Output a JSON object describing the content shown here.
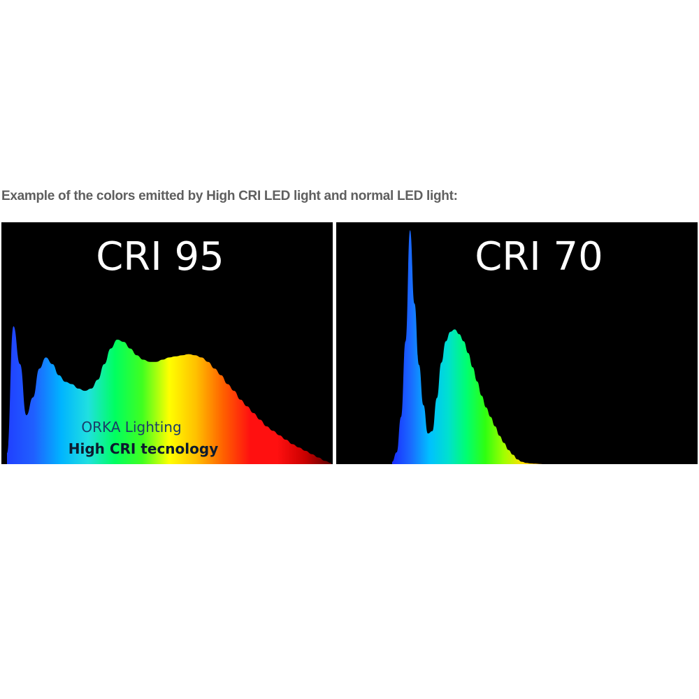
{
  "caption": "Example of the colors emitted by High CRI LED light and normal LED light:",
  "chart_data": [
    {
      "type": "area",
      "title": "CRI 95",
      "annotation": [
        "ORKA Lighting",
        "High CRI tecnology"
      ],
      "x": [
        0,
        0.02,
        0.04,
        0.06,
        0.08,
        0.1,
        0.12,
        0.14,
        0.16,
        0.18,
        0.2,
        0.22,
        0.24,
        0.26,
        0.28,
        0.3,
        0.32,
        0.34,
        0.36,
        0.38,
        0.4,
        0.42,
        0.44,
        0.46,
        0.48,
        0.5,
        0.52,
        0.54,
        0.56,
        0.58,
        0.6,
        0.62,
        0.64,
        0.66,
        0.68,
        0.7,
        0.72,
        0.74,
        0.76,
        0.78,
        0.8,
        0.82,
        0.84,
        0.86,
        0.88,
        0.9,
        0.92,
        0.94,
        0.96,
        0.98,
        1
      ],
      "y": [
        0.05,
        0.62,
        0.45,
        0.22,
        0.3,
        0.43,
        0.48,
        0.45,
        0.4,
        0.37,
        0.36,
        0.34,
        0.33,
        0.34,
        0.38,
        0.45,
        0.52,
        0.56,
        0.55,
        0.52,
        0.49,
        0.47,
        0.46,
        0.46,
        0.47,
        0.48,
        0.485,
        0.49,
        0.495,
        0.49,
        0.48,
        0.46,
        0.43,
        0.4,
        0.36,
        0.33,
        0.29,
        0.26,
        0.23,
        0.2,
        0.17,
        0.15,
        0.13,
        0.11,
        0.09,
        0.075,
        0.06,
        0.045,
        0.03,
        0.015,
        0.005
      ],
      "colors": [
        "#2040ff",
        "#2060ff",
        "#00b4ff",
        "#20e0e0",
        "#00ff60",
        "#40ff20",
        "#ffff00",
        "#ffc000",
        "#ff6000",
        "#ff1010",
        "#ff1010",
        "#cc0000",
        "#600000"
      ]
    },
    {
      "type": "area",
      "title": "CRI 70",
      "x": [
        0,
        0.02,
        0.04,
        0.06,
        0.08,
        0.1,
        0.12,
        0.14,
        0.16,
        0.18,
        0.2,
        0.22,
        0.24,
        0.26,
        0.28,
        0.3,
        0.32,
        0.34,
        0.36,
        0.38,
        0.4,
        0.42,
        0.44,
        0.46,
        0.48,
        0.5,
        0.52,
        0.54,
        0.56,
        0.58,
        0.6,
        0.62,
        0.64,
        0.66,
        0.68,
        0.7,
        0.72,
        0.74,
        0.76,
        0.78,
        0.8,
        0.82,
        0.84,
        0.86,
        0.88,
        0.9,
        0.92,
        0.94,
        0.96,
        0.98,
        1
      ],
      "y": [
        0.01,
        0.05,
        0.2,
        0.52,
        0.99,
        0.68,
        0.42,
        0.25,
        0.13,
        0.14,
        0.28,
        0.43,
        0.52,
        0.56,
        0.57,
        0.55,
        0.52,
        0.47,
        0.41,
        0.35,
        0.29,
        0.24,
        0.2,
        0.16,
        0.12,
        0.09,
        0.06,
        0.04,
        0.02,
        0.01,
        0.005,
        0.003,
        0.002,
        0.001,
        0,
        0,
        0,
        0,
        0,
        0,
        0,
        0,
        0,
        0,
        0,
        0,
        0,
        0,
        0,
        0,
        0
      ],
      "colors": [
        "#1a2cff",
        "#1a6aff",
        "#00c0ff",
        "#00e0d0",
        "#00ff70",
        "#30ff10",
        "#a0ff00",
        "#ffe000",
        "#ffb000",
        "#ff7000",
        "#ff3000",
        "#ff0000",
        "#e00000"
      ]
    }
  ]
}
